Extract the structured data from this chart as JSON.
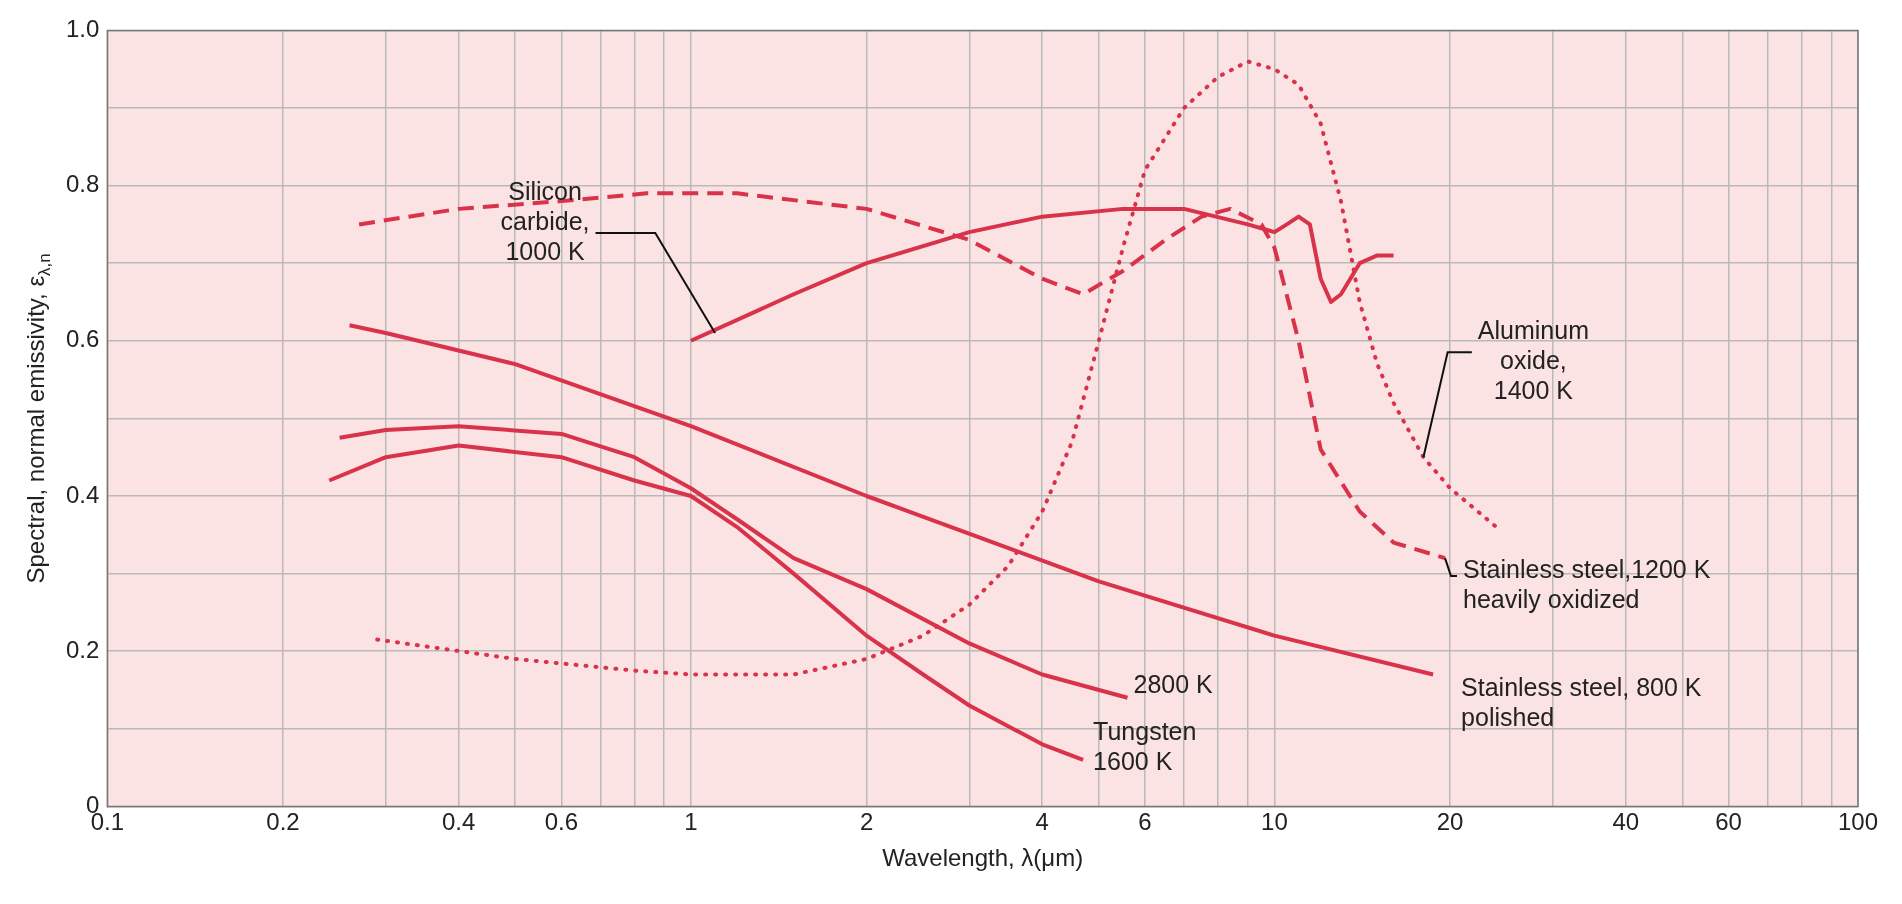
{
  "chart_data": {
    "type": "line",
    "xlabel": "Wavelength, λ(μm)",
    "ylabel": "Spectral, normal emissivity, ε$_{λ,n}$",
    "log": "x",
    "grid": true,
    "legend": false,
    "marker": "none",
    "xlim": [
      0.1,
      100
    ],
    "ylim": [
      0,
      1
    ],
    "xticks": [
      0.1,
      0.2,
      {
        "value": 0.3,
        "label": null
      },
      0.4,
      {
        "value": 0.5,
        "label": null
      },
      0.6,
      {
        "value": 0.7,
        "label": null
      },
      {
        "value": 0.8,
        "label": null
      },
      {
        "value": 0.9,
        "label": null
      },
      1,
      2,
      {
        "value": 3,
        "label": null
      },
      4,
      {
        "value": 5,
        "label": null
      },
      6,
      {
        "value": 7,
        "label": null
      },
      {
        "value": 8,
        "label": null
      },
      {
        "value": 9,
        "label": null
      },
      10,
      20,
      {
        "value": 30,
        "label": null
      },
      40,
      {
        "value": 50,
        "label": null
      },
      60,
      {
        "value": 70,
        "label": null
      },
      {
        "value": 80,
        "label": null
      },
      {
        "value": 90,
        "label": null
      },
      100
    ],
    "yticks": [
      0,
      {
        "value": 0.1,
        "label": null
      },
      0.2,
      {
        "value": 0.3,
        "label": null
      },
      0.4,
      {
        "value": 0.5,
        "label": null
      },
      0.6,
      {
        "value": 0.7,
        "label": null
      },
      0.8,
      {
        "value": 0.9,
        "label": null
      },
      {
        "value": 1,
        "label": "1.0"
      }
    ],
    "series": [
      {
        "color": "#d8334a",
        "line_style": "solid",
        "x": [
          0.26,
          0.3,
          0.5,
          1,
          2,
          5,
          10,
          18.7
        ],
        "values": [
          0.62,
          0.61,
          0.57,
          0.49,
          0.4,
          0.29,
          0.22,
          0.17
        ]
      },
      {
        "color": "#d8334a",
        "line_style": "dashed",
        "x": [
          0.27,
          0.4,
          0.6,
          0.84,
          1.2,
          2,
          3,
          4,
          4.7,
          5.5,
          6.5,
          7.5,
          8.4,
          9.5,
          10,
          11,
          12,
          14,
          16,
          19.6
        ],
        "values": [
          0.75,
          0.77,
          0.78,
          0.79,
          0.79,
          0.77,
          0.73,
          0.68,
          0.66,
          0.69,
          0.73,
          0.76,
          0.77,
          0.75,
          0.72,
          0.6,
          0.46,
          0.38,
          0.34,
          0.32
        ]
      },
      {
        "color": "#d8334a",
        "line_style": "dotted",
        "x": [
          0.29,
          0.5,
          0.8,
          1,
          1.5,
          2,
          2.5,
          3,
          3.5,
          4,
          4.5,
          5,
          5.5,
          6,
          7,
          8,
          9,
          10,
          11,
          12,
          13,
          14,
          15,
          16,
          18,
          20,
          24
        ],
        "values": [
          0.215,
          0.19,
          0.175,
          0.17,
          0.17,
          0.19,
          0.22,
          0.26,
          0.31,
          0.38,
          0.47,
          0.6,
          0.72,
          0.82,
          0.9,
          0.94,
          0.96,
          0.95,
          0.93,
          0.88,
          0.78,
          0.65,
          0.57,
          0.52,
          0.45,
          0.41,
          0.36
        ]
      },
      {
        "color": "#d8334a",
        "line_style": "solid",
        "x": [
          1,
          1.5,
          2,
          3,
          4,
          5.5,
          7,
          9,
          10,
          10.5,
          11,
          11.5,
          12,
          12.5,
          13,
          14,
          15,
          16
        ],
        "values": [
          0.6,
          0.66,
          0.7,
          0.74,
          0.76,
          0.77,
          0.77,
          0.75,
          0.74,
          0.75,
          0.76,
          0.75,
          0.68,
          0.65,
          0.66,
          0.7,
          0.71,
          0.71
        ]
      },
      {
        "color": "#d8334a",
        "line_style": "solid",
        "x": [
          0.25,
          0.3,
          0.4,
          0.6,
          0.8,
          1,
          1.2,
          1.5,
          2,
          3,
          4,
          5.6
        ],
        "values": [
          0.475,
          0.485,
          0.49,
          0.48,
          0.45,
          0.41,
          0.37,
          0.32,
          0.28,
          0.21,
          0.17,
          0.14
        ]
      },
      {
        "color": "#d8334a",
        "line_style": "solid",
        "x": [
          0.24,
          0.3,
          0.4,
          0.6,
          0.8,
          1,
          1.2,
          1.5,
          2,
          2.5,
          3,
          4,
          4.7
        ],
        "values": [
          0.42,
          0.45,
          0.465,
          0.45,
          0.42,
          0.4,
          0.36,
          0.3,
          0.22,
          0.17,
          0.13,
          0.08,
          0.06
        ]
      }
    ],
    "annotations": [
      {
        "text": "Silicon\ncarbide,\n1000 K",
        "x": 1.1,
        "y": 0.61
      },
      {
        "text": "Aluminum\noxide,\n1400 K",
        "x": 18,
        "y": 0.45
      },
      {
        "text": "Stainless steel,1200 K\nheavily oxidized",
        "x": 19.6,
        "y": 0.32
      },
      {
        "text": "Stainless steel, 800 K\npolished",
        "x": 18.7,
        "y": 0.17
      },
      {
        "text": "2800 K",
        "x": 5.6,
        "y": 0.14
      },
      {
        "text": "Tungsten\n1600 K",
        "x": 4.7,
        "y": 0.06
      }
    ]
  }
}
